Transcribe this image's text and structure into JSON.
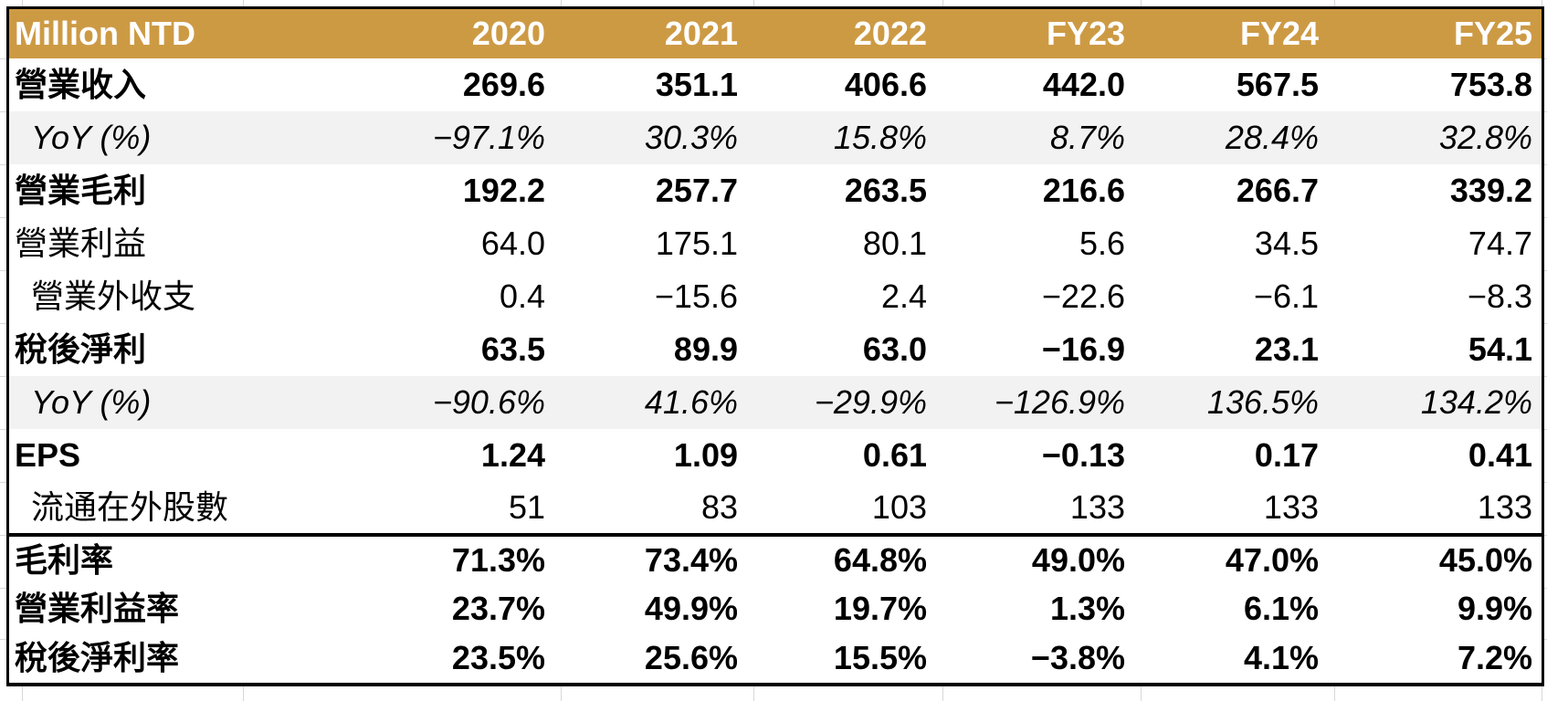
{
  "colors": {
    "header_bg": "#CD9A44",
    "header_text": "#FFFFFF",
    "band_bg": "#F2F2F2",
    "border": "#000000",
    "grid_line": "#D8D8D8",
    "text": "#000000"
  },
  "table": {
    "header": {
      "label": "Million NTD",
      "columns": [
        "2020",
        "2021",
        "2022",
        "FY23",
        "FY24",
        "FY25"
      ]
    },
    "rows": [
      {
        "label": "營業收入",
        "values": [
          "269.6",
          "351.1",
          "406.6",
          "442.0",
          "567.5",
          "753.8"
        ],
        "bold": true,
        "italic": false,
        "indent": false,
        "band": false,
        "section_start": false
      },
      {
        "label": "YoY (%)",
        "values": [
          "−97.1%",
          "30.3%",
          "15.8%",
          "8.7%",
          "28.4%",
          "32.8%"
        ],
        "bold": false,
        "italic": true,
        "indent": true,
        "band": true,
        "section_start": false
      },
      {
        "label": "營業毛利",
        "values": [
          "192.2",
          "257.7",
          "263.5",
          "216.6",
          "266.7",
          "339.2"
        ],
        "bold": true,
        "italic": false,
        "indent": false,
        "band": false,
        "section_start": false
      },
      {
        "label": "營業利益",
        "values": [
          "64.0",
          "175.1",
          "80.1",
          "5.6",
          "34.5",
          "74.7"
        ],
        "bold": false,
        "italic": false,
        "indent": false,
        "band": false,
        "section_start": false
      },
      {
        "label": "營業外收支",
        "values": [
          "0.4",
          "−15.6",
          "2.4",
          "−22.6",
          "−6.1",
          "−8.3"
        ],
        "bold": false,
        "italic": false,
        "indent": true,
        "band": false,
        "section_start": false
      },
      {
        "label": "稅後淨利",
        "values": [
          "63.5",
          "89.9",
          "63.0",
          "−16.9",
          "23.1",
          "54.1"
        ],
        "bold": true,
        "italic": false,
        "indent": false,
        "band": false,
        "section_start": false
      },
      {
        "label": "YoY (%)",
        "values": [
          "−90.6%",
          "41.6%",
          "−29.9%",
          "−126.9%",
          "136.5%",
          "134.2%"
        ],
        "bold": false,
        "italic": true,
        "indent": true,
        "band": true,
        "section_start": false
      },
      {
        "label": "EPS",
        "values": [
          "1.24",
          "1.09",
          "0.61",
          "−0.13",
          "0.17",
          "0.41"
        ],
        "bold": true,
        "italic": false,
        "indent": false,
        "band": false,
        "section_start": false
      },
      {
        "label": "流通在外股數",
        "values": [
          "51",
          "83",
          "103",
          "133",
          "133",
          "133"
        ],
        "bold": false,
        "italic": false,
        "indent": true,
        "band": false,
        "section_start": false
      },
      {
        "label": "毛利率",
        "values": [
          "71.3%",
          "73.4%",
          "64.8%",
          "49.0%",
          "47.0%",
          "45.0%"
        ],
        "bold": true,
        "italic": false,
        "indent": false,
        "band": false,
        "section_start": true
      },
      {
        "label": "營業利益率",
        "values": [
          "23.7%",
          "49.9%",
          "19.7%",
          "1.3%",
          "6.1%",
          "9.9%"
        ],
        "bold": true,
        "italic": false,
        "indent": false,
        "band": false,
        "section_start": false
      },
      {
        "label": "稅後淨利率",
        "values": [
          "23.5%",
          "25.6%",
          "15.5%",
          "−3.8%",
          "4.1%",
          "7.2%"
        ],
        "bold": true,
        "italic": false,
        "indent": false,
        "band": false,
        "section_start": false
      }
    ]
  },
  "chart_data": {
    "type": "table",
    "unit": "Million NTD",
    "columns": [
      "2020",
      "2021",
      "2022",
      "FY23",
      "FY24",
      "FY25"
    ],
    "rows": [
      {
        "metric": "營業收入",
        "values": [
          269.6,
          351.1,
          406.6,
          442.0,
          567.5,
          753.8
        ]
      },
      {
        "metric": "YoY (%)",
        "values": [
          -97.1,
          30.3,
          15.8,
          8.7,
          28.4,
          32.8
        ]
      },
      {
        "metric": "營業毛利",
        "values": [
          192.2,
          257.7,
          263.5,
          216.6,
          266.7,
          339.2
        ]
      },
      {
        "metric": "營業利益",
        "values": [
          64.0,
          175.1,
          80.1,
          5.6,
          34.5,
          74.7
        ]
      },
      {
        "metric": "營業外收支",
        "values": [
          0.4,
          -15.6,
          2.4,
          -22.6,
          -6.1,
          -8.3
        ]
      },
      {
        "metric": "稅後淨利",
        "values": [
          63.5,
          89.9,
          63.0,
          -16.9,
          23.1,
          54.1
        ]
      },
      {
        "metric": "YoY (%)",
        "values": [
          -90.6,
          41.6,
          -29.9,
          -126.9,
          136.5,
          134.2
        ]
      },
      {
        "metric": "EPS",
        "values": [
          1.24,
          1.09,
          0.61,
          -0.13,
          0.17,
          0.41
        ]
      },
      {
        "metric": "流通在外股數",
        "values": [
          51,
          83,
          103,
          133,
          133,
          133
        ]
      },
      {
        "metric": "毛利率",
        "values": [
          71.3,
          73.4,
          64.8,
          49.0,
          47.0,
          45.0
        ]
      },
      {
        "metric": "營業利益率",
        "values": [
          23.7,
          49.9,
          19.7,
          1.3,
          6.1,
          9.9
        ]
      },
      {
        "metric": "稅後淨利率",
        "values": [
          23.5,
          25.6,
          15.5,
          -3.8,
          4.1,
          7.2
        ]
      }
    ]
  }
}
